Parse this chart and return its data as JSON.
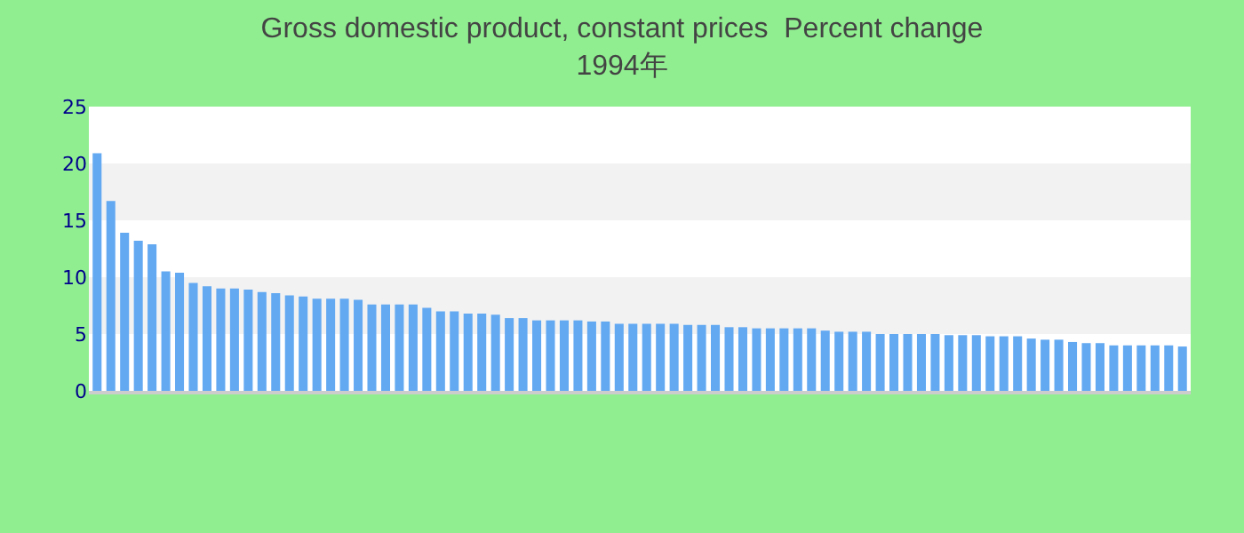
{
  "chart_data": {
    "type": "bar",
    "title": "Gross domestic product, constant prices  Percent change\n1994年",
    "categories": [
      null,
      null,
      null,
      null,
      null,
      null,
      null,
      null,
      null,
      null,
      null,
      null,
      null,
      null,
      null,
      null,
      null,
      null,
      null,
      null,
      null,
      null,
      null,
      null,
      null,
      null,
      null,
      null,
      null,
      null,
      null,
      null,
      null,
      null,
      null,
      null,
      null,
      null,
      null,
      null,
      null,
      null,
      null,
      null,
      null,
      null,
      null,
      null,
      null,
      null,
      null,
      null,
      null,
      null,
      null,
      null,
      null,
      null,
      null,
      null,
      null,
      null,
      null,
      null,
      null,
      null,
      null,
      null,
      null,
      null,
      null,
      null,
      null,
      null,
      null,
      null,
      null,
      null,
      null,
      null
    ],
    "values": [
      20.9,
      16.7,
      13.9,
      13.2,
      12.9,
      10.5,
      10.4,
      9.5,
      9.2,
      9.0,
      9.0,
      8.9,
      8.7,
      8.6,
      8.4,
      8.3,
      8.1,
      8.1,
      8.1,
      8.0,
      7.6,
      7.6,
      7.6,
      7.6,
      7.3,
      7.0,
      7.0,
      6.8,
      6.8,
      6.7,
      6.4,
      6.4,
      6.2,
      6.2,
      6.2,
      6.2,
      6.1,
      6.1,
      5.9,
      5.9,
      5.9,
      5.9,
      5.9,
      5.8,
      5.8,
      5.8,
      5.6,
      5.6,
      5.5,
      5.5,
      5.5,
      5.5,
      5.5,
      5.3,
      5.2,
      5.2,
      5.2,
      5.0,
      5.0,
      5.0,
      5.0,
      5.0,
      4.9,
      4.9,
      4.9,
      4.8,
      4.8,
      4.8,
      4.6,
      4.5,
      4.5,
      4.3,
      4.2,
      4.2,
      4.0,
      4.0,
      4.0,
      4.0,
      4.0,
      3.9
    ],
    "color": "#63a9f2",
    "ylim": [
      0,
      25
    ],
    "yticks": [
      0,
      5,
      10,
      15,
      20,
      25
    ],
    "bands": [
      {
        "axis": "y",
        "from": 5,
        "to": 10,
        "color": "#f2f2f2"
      },
      {
        "axis": "y",
        "from": 15,
        "to": 20,
        "color": "#f2f2f2"
      }
    ],
    "tick_labels": "y",
    "grid": false
  }
}
